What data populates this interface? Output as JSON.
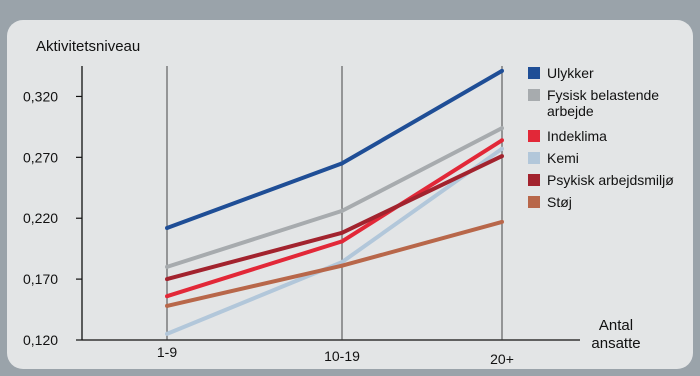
{
  "chart_data": {
    "type": "line",
    "title": "",
    "ylabel": "Aktivitetsniveau",
    "xlabel_lines": [
      "Antal",
      "ansatte"
    ],
    "categories": [
      "1-9",
      "10-19",
      "20+"
    ],
    "ylim": [
      0.12,
      0.345
    ],
    "yticks": [
      0.12,
      0.17,
      0.22,
      0.27,
      0.32
    ],
    "ytick_labels": [
      "0,120",
      "0,170",
      "0,220",
      "0,270",
      "0,320"
    ],
    "legend_position": "right",
    "series": [
      {
        "name": "Ulykker",
        "legend_lines": [
          "Ulykker"
        ],
        "color": "#1f4e96",
        "values": [
          0.212,
          0.265,
          0.341
        ]
      },
      {
        "name": "Fysisk belastende arbejde",
        "legend_lines": [
          "Fysisk belastende",
          "arbejde"
        ],
        "color": "#a7abae",
        "values": [
          0.18,
          0.226,
          0.294
        ]
      },
      {
        "name": "Indeklima",
        "legend_lines": [
          "Indeklima"
        ],
        "color": "#e22838",
        "values": [
          0.156,
          0.201,
          0.284
        ]
      },
      {
        "name": "Kemi",
        "legend_lines": [
          "Kemi"
        ],
        "color": "#b2c7da",
        "values": [
          0.125,
          0.184,
          0.277
        ]
      },
      {
        "name": "Psykisk arbejdsmiljø",
        "legend_lines": [
          "Psykisk arbejdsmiljø"
        ],
        "color": "#a2232e",
        "values": [
          0.17,
          0.208,
          0.271
        ]
      },
      {
        "name": "Støj",
        "legend_lines": [
          "Støj"
        ],
        "color": "#b8674a",
        "values": [
          0.148,
          0.181,
          0.217
        ]
      }
    ]
  }
}
